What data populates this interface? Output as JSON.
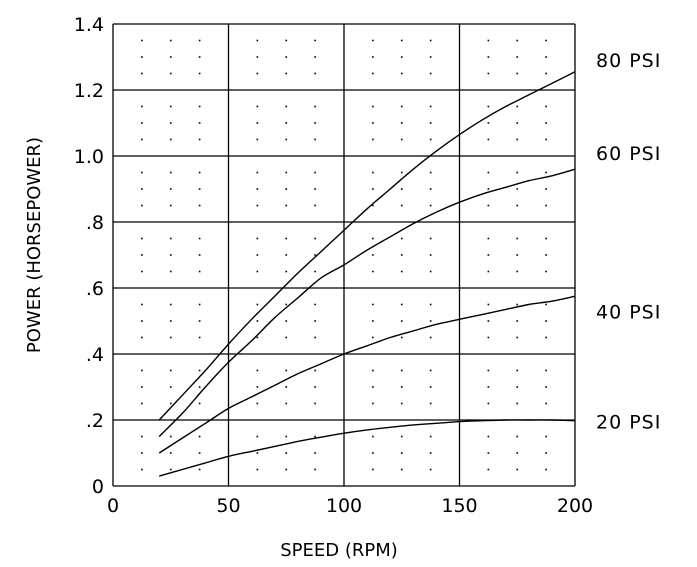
{
  "chart_data": {
    "type": "line",
    "title": "",
    "xlabel": "SPEED (RPM)",
    "ylabel": "POWER (HORSEPOWER)",
    "xlim": [
      0,
      200
    ],
    "ylim": [
      0,
      1.4
    ],
    "x_ticks": [
      0,
      50,
      100,
      150,
      200
    ],
    "x_tick_labels": [
      "0",
      "50",
      "100",
      "150",
      "200"
    ],
    "y_ticks": [
      0,
      0.2,
      0.4,
      0.6,
      0.8,
      1.0,
      1.2,
      1.4
    ],
    "y_tick_labels": [
      "0",
      ".2",
      ".4",
      ".6",
      ".8",
      "1.0",
      "1.2",
      "1.4"
    ],
    "grid": true,
    "legend": "right",
    "series": [
      {
        "name": "80 PSI",
        "x": [
          20,
          30,
          40,
          50,
          60,
          70,
          80,
          90,
          100,
          110,
          120,
          130,
          140,
          150,
          160,
          170,
          180,
          190,
          200
        ],
        "y": [
          0.2,
          0.275,
          0.35,
          0.43,
          0.505,
          0.575,
          0.645,
          0.71,
          0.775,
          0.84,
          0.9,
          0.96,
          1.015,
          1.065,
          1.11,
          1.15,
          1.185,
          1.22,
          1.255
        ]
      },
      {
        "name": "60 PSI",
        "x": [
          20,
          30,
          40,
          50,
          60,
          70,
          80,
          90,
          100,
          110,
          120,
          130,
          140,
          150,
          160,
          170,
          180,
          190,
          200
        ],
        "y": [
          0.15,
          0.22,
          0.3,
          0.375,
          0.44,
          0.51,
          0.57,
          0.63,
          0.67,
          0.715,
          0.755,
          0.795,
          0.83,
          0.86,
          0.885,
          0.905,
          0.925,
          0.94,
          0.96
        ]
      },
      {
        "name": "40 PSI",
        "x": [
          20,
          30,
          40,
          50,
          60,
          70,
          80,
          90,
          100,
          110,
          120,
          130,
          140,
          150,
          160,
          170,
          180,
          190,
          200
        ],
        "y": [
          0.1,
          0.145,
          0.19,
          0.235,
          0.27,
          0.305,
          0.34,
          0.37,
          0.4,
          0.425,
          0.45,
          0.47,
          0.49,
          0.505,
          0.52,
          0.535,
          0.55,
          0.56,
          0.575
        ]
      },
      {
        "name": "20 PSI",
        "x": [
          20,
          30,
          40,
          50,
          60,
          70,
          80,
          90,
          100,
          110,
          120,
          130,
          140,
          150,
          160,
          170,
          180,
          190,
          200
        ],
        "y": [
          0.03,
          0.05,
          0.07,
          0.09,
          0.105,
          0.12,
          0.135,
          0.148,
          0.16,
          0.17,
          0.178,
          0.185,
          0.19,
          0.195,
          0.198,
          0.2,
          0.2,
          0.2,
          0.198
        ]
      }
    ]
  }
}
